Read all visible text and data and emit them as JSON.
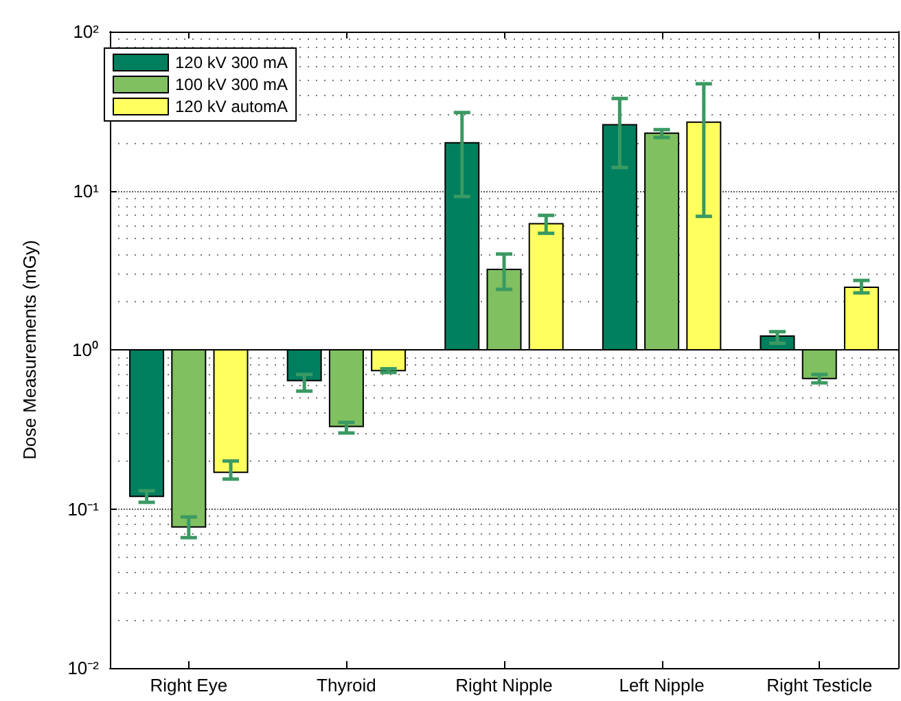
{
  "chart_data": {
    "type": "bar",
    "ylabel": "Dose Measurements (mGy)",
    "categories": [
      "Right Eye",
      "Thyroid",
      "Right Nipple",
      "Left Nipple",
      "Right Testicle"
    ],
    "series": [
      {
        "name": "120 kV 300 mA",
        "color": "#007f5f",
        "base": [
          1,
          1,
          1,
          1,
          1
        ],
        "values": [
          -0.88,
          -0.36,
          19,
          25,
          0.22
        ],
        "errors": [
          [
            0.11,
            0.13
          ],
          [
            0.55,
            0.7
          ],
          [
            9.2,
            31
          ],
          [
            14,
            38
          ],
          [
            1.1,
            1.3
          ]
        ]
      },
      {
        "name": "100 kV 300 mA",
        "color": "#80c060",
        "base": [
          1,
          1,
          1,
          1,
          1
        ],
        "values": [
          -0.923,
          -0.67,
          2.2,
          22,
          -0.34
        ],
        "errors": [
          [
            0.066,
            0.089
          ],
          [
            0.3,
            0.35
          ],
          [
            2.4,
            4
          ],
          [
            21.6,
            24.2
          ],
          [
            0.62,
            0.7
          ]
        ]
      },
      {
        "name": "120 kV automA",
        "color": "#ffff60",
        "base": [
          1,
          1,
          1,
          1,
          1
        ],
        "values": [
          -0.83,
          -0.26,
          5.2,
          26,
          1.47
        ],
        "errors": [
          [
            0.154,
            0.2
          ],
          [
            0.72,
            0.76
          ],
          [
            5.4,
            7
          ],
          [
            6.9,
            47
          ],
          [
            2.28,
            2.73
          ]
        ]
      }
    ],
    "log": "y",
    "ylim": [
      0.01,
      100
    ],
    "yticks": [
      {
        "value": 0.01,
        "label": "10⁻²"
      },
      {
        "value": 0.1,
        "label": "10⁻¹"
      },
      {
        "value": 1,
        "label": "10⁰"
      },
      {
        "value": 10,
        "label": "10¹"
      },
      {
        "value": 100,
        "label": "10²"
      }
    ],
    "grid": "y",
    "legend": "top left",
    "ref_lines": [
      {
        "axis": "y",
        "value": 1,
        "color": "#000000",
        "line_style": "solid"
      }
    ]
  }
}
